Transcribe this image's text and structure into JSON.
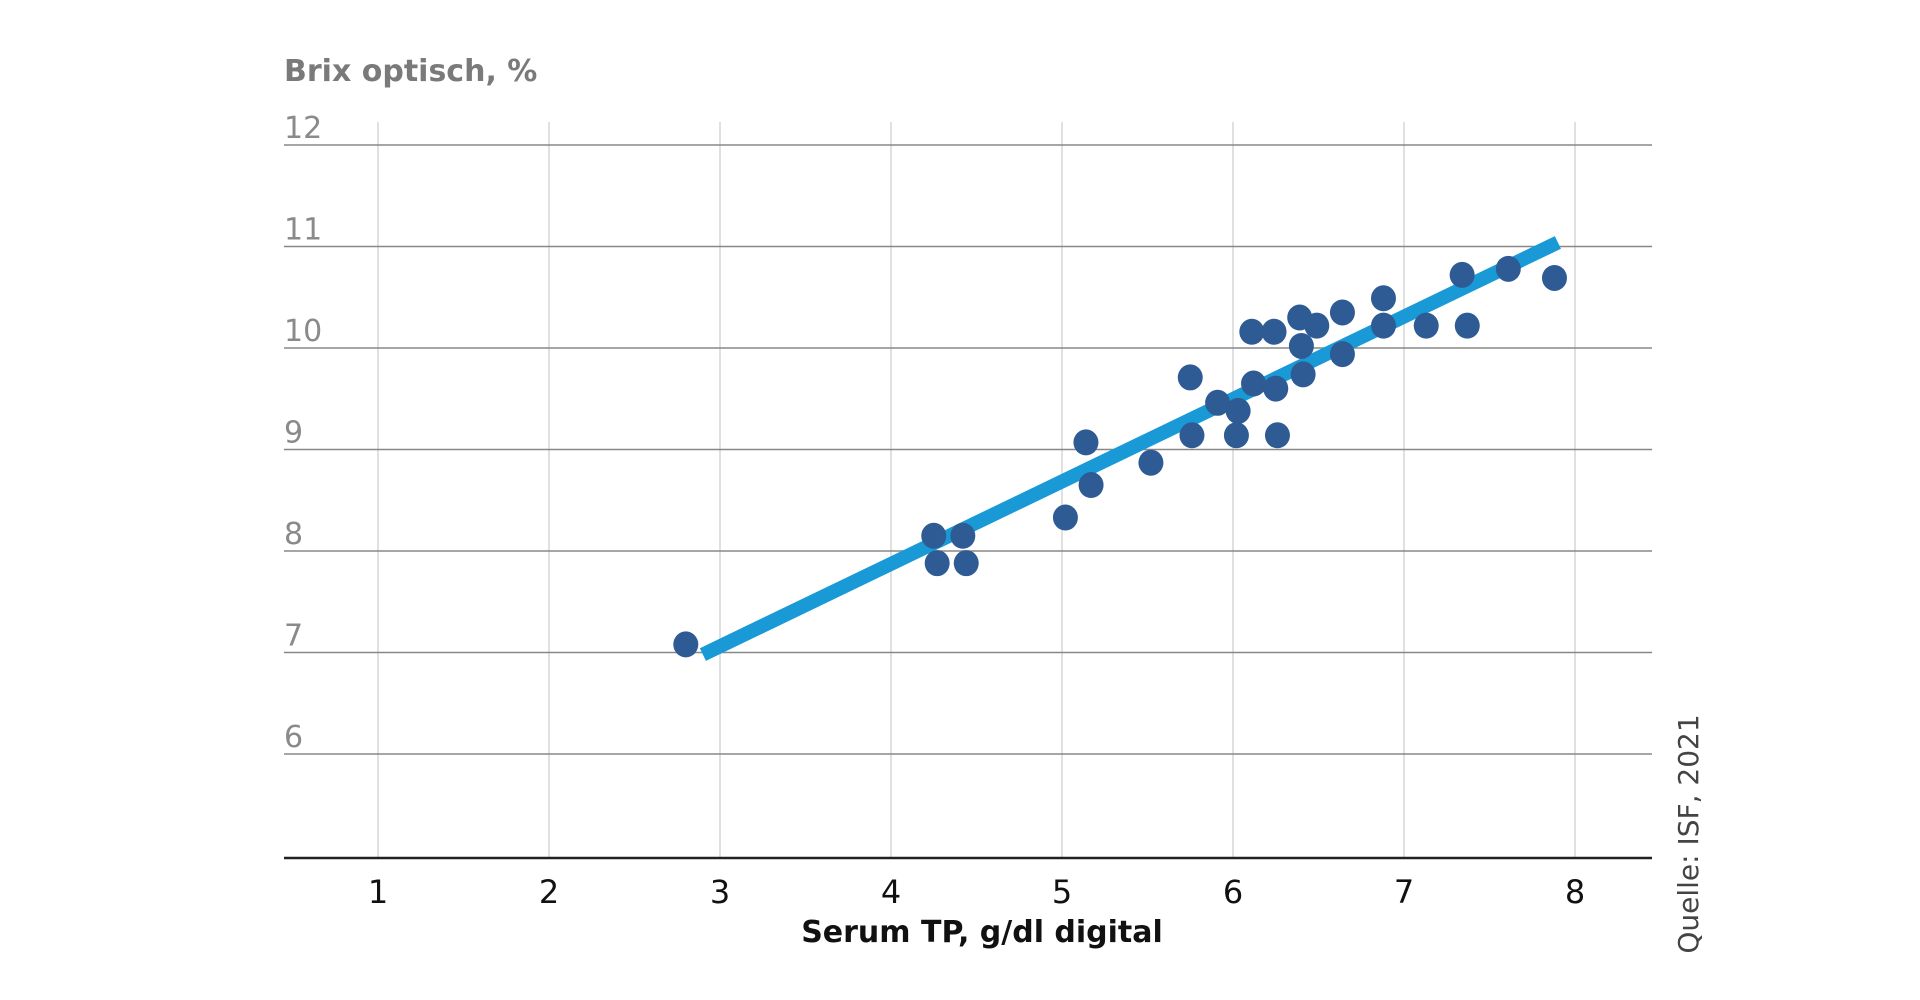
{
  "chart_data": {
    "type": "scatter",
    "ylabel": "Brix optisch, %",
    "xlabel": "Serum TP, g/dl digital",
    "source": "Quelle: ISF, 2021",
    "xlim": [
      0.45,
      8.45
    ],
    "ylim": [
      5,
      12.2
    ],
    "x_ticks": [
      "1",
      "2",
      "3",
      "4",
      "5",
      "6",
      "7",
      "8"
    ],
    "y_ticks": [
      "6",
      "7",
      "8",
      "9",
      "10",
      "11",
      "12"
    ],
    "grid": true,
    "colors": {
      "points": "#2f5b94",
      "trendline": "#199ad6",
      "gridline": "#888888",
      "vgrid": "#d6d6d6",
      "axis": "#222222"
    },
    "points": [
      [
        2.8,
        7.08
      ],
      [
        4.25,
        8.15
      ],
      [
        4.27,
        7.88
      ],
      [
        4.42,
        8.15
      ],
      [
        4.44,
        7.88
      ],
      [
        5.02,
        8.33
      ],
      [
        5.14,
        9.07
      ],
      [
        5.17,
        8.65
      ],
      [
        5.52,
        8.87
      ],
      [
        5.75,
        9.71
      ],
      [
        5.76,
        9.14
      ],
      [
        5.91,
        9.46
      ],
      [
        6.02,
        9.14
      ],
      [
        6.03,
        9.38
      ],
      [
        6.11,
        10.16
      ],
      [
        6.12,
        9.65
      ],
      [
        6.24,
        10.16
      ],
      [
        6.25,
        9.6
      ],
      [
        6.26,
        9.14
      ],
      [
        6.39,
        10.3
      ],
      [
        6.4,
        10.02
      ],
      [
        6.41,
        9.74
      ],
      [
        6.49,
        10.22
      ],
      [
        6.64,
        10.35
      ],
      [
        6.64,
        9.94
      ],
      [
        6.88,
        10.49
      ],
      [
        6.88,
        10.22
      ],
      [
        7.13,
        10.22
      ],
      [
        7.34,
        10.72
      ],
      [
        7.37,
        10.22
      ],
      [
        7.61,
        10.78
      ],
      [
        7.88,
        10.69
      ]
    ],
    "trendline": {
      "x": [
        2.9,
        7.9
      ],
      "y": [
        6.98,
        11.04
      ]
    }
  }
}
